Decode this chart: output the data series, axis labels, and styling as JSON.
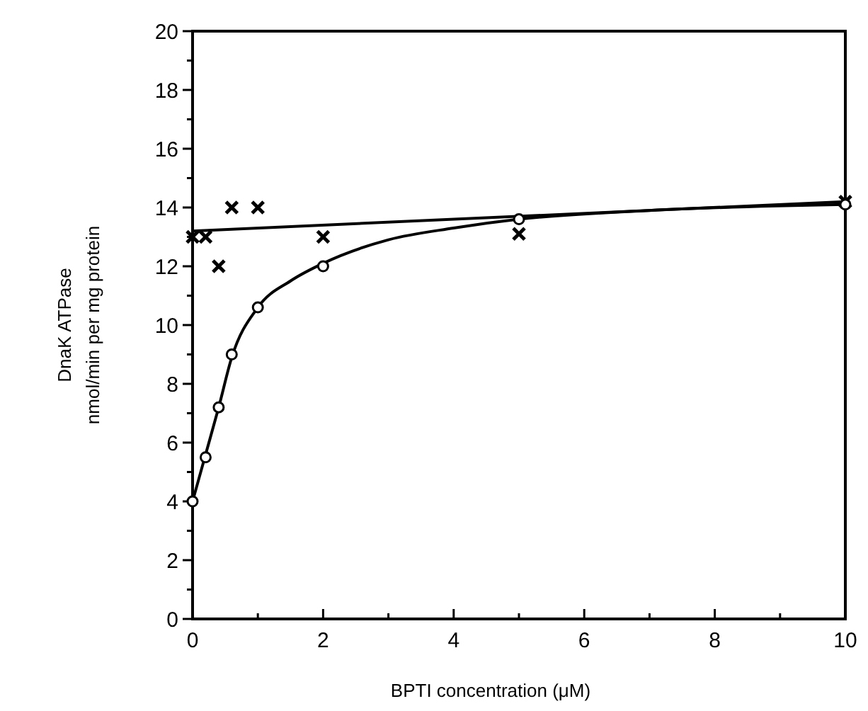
{
  "chart_data": {
    "type": "scatter",
    "xlabel": "BPTI concentration (μM)",
    "ylabel": "DnaK ATPase\nnmol/min per mg protein",
    "xlim": [
      0,
      10
    ],
    "ylim": [
      0,
      20
    ],
    "xticks": [
      0,
      {
        "value": 1,
        "label": null
      },
      2,
      {
        "value": 3,
        "label": null
      },
      4,
      {
        "value": 5,
        "label": null
      },
      6,
      {
        "value": 7,
        "label": null
      },
      8,
      {
        "value": 9,
        "label": null
      },
      10
    ],
    "yticks": [
      0,
      {
        "value": 1,
        "label": null
      },
      2,
      {
        "value": 3,
        "label": null
      },
      4,
      {
        "value": 5,
        "label": null
      },
      6,
      {
        "value": 7,
        "label": null
      },
      8,
      {
        "value": 9,
        "label": null
      },
      10,
      {
        "value": 11,
        "label": null
      },
      12,
      {
        "value": 13,
        "label": null
      },
      14,
      {
        "value": 15,
        "label": null
      },
      16,
      {
        "value": 17,
        "label": null
      },
      18,
      {
        "value": 19,
        "label": null
      },
      20
    ],
    "grid": false,
    "series": [
      {
        "marker": "circle",
        "color": "#000000",
        "x": [
          0,
          0.2,
          0.4,
          0.6,
          1,
          2,
          5,
          10
        ],
        "values": [
          4,
          5.5,
          7.2,
          9,
          10.6,
          12,
          13.6,
          14.1
        ]
      },
      {
        "marker": "cross",
        "color": "#000000",
        "x": [
          0,
          0.2,
          0.4,
          0.6,
          1,
          2,
          5,
          10
        ],
        "values": [
          13,
          13,
          12,
          14,
          14,
          13,
          13.1,
          14.2
        ]
      },
      {
        "type": "line",
        "marker": "none",
        "line_style": "solid",
        "color": "#000000",
        "x": [
          0,
          0.2,
          0.4,
          0.6,
          1,
          1.5,
          2,
          3,
          4,
          5,
          7,
          10
        ],
        "values": [
          4,
          5.6,
          7.2,
          8.9,
          10.6,
          11.5,
          12.1,
          12.9,
          13.3,
          13.6,
          13.9,
          14.1
        ]
      },
      {
        "type": "line",
        "marker": "none",
        "line_style": "solid",
        "color": "#000000",
        "x": [
          0,
          10
        ],
        "values": [
          13.2,
          14.2
        ]
      }
    ]
  }
}
